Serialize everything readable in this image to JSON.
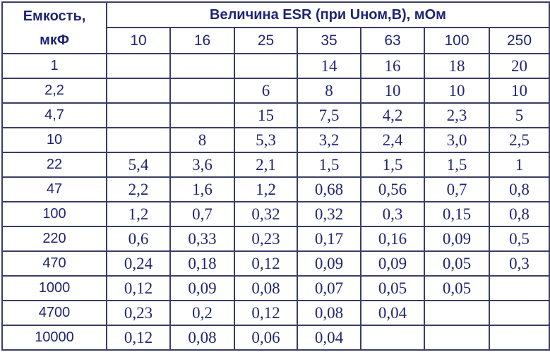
{
  "header": {
    "capacity_label": [
      "Емкость,",
      "мкФ"
    ],
    "esr_label": "Величина ESR (при Uном,В), мОм",
    "voltages": [
      10,
      16,
      25,
      35,
      63,
      100,
      250
    ]
  },
  "table": {
    "rows": [
      {
        "capacitance": "1",
        "esr": [
          null,
          null,
          null,
          "14",
          "16",
          "18",
          "20"
        ]
      },
      {
        "capacitance": "2,2",
        "esr": [
          null,
          null,
          "6",
          "8",
          "10",
          "10",
          "10"
        ]
      },
      {
        "capacitance": "4,7",
        "esr": [
          null,
          null,
          "15",
          "7,5",
          "4,2",
          "2,3",
          "5"
        ]
      },
      {
        "capacitance": "10",
        "esr": [
          null,
          "8",
          "5,3",
          "3,2",
          "2,4",
          "3,0",
          "2,5"
        ]
      },
      {
        "capacitance": "22",
        "esr": [
          "5,4",
          "3,6",
          "2,1",
          "1,5",
          "1,5",
          "1,5",
          "1"
        ]
      },
      {
        "capacitance": "47",
        "esr": [
          "2,2",
          "1,6",
          "1,2",
          "0,68",
          "0,56",
          "0,7",
          "0,8"
        ]
      },
      {
        "capacitance": "100",
        "esr": [
          "1,2",
          "0,7",
          "0,32",
          "0,32",
          "0,3",
          "0,15",
          "0,8"
        ]
      },
      {
        "capacitance": "220",
        "esr": [
          "0,6",
          "0,33",
          "0,23",
          "0,17",
          "0,16",
          "0,09",
          "0,5"
        ]
      },
      {
        "capacitance": "470",
        "esr": [
          "0,24",
          "0,18",
          "0,12",
          "0,09",
          "0,09",
          "0,05",
          "0,3"
        ]
      },
      {
        "capacitance": "1000",
        "esr": [
          "0,12",
          "0,09",
          "0,08",
          "0,07",
          "0,05",
          "0,05",
          null
        ]
      },
      {
        "capacitance": "4700",
        "esr": [
          "0,23",
          "0,2",
          "0,12",
          "0,08",
          "0,04",
          null,
          null
        ]
      },
      {
        "capacitance": "10000",
        "esr": [
          "0,12",
          "0,08",
          "0,06",
          "0,04",
          null,
          null,
          null
        ]
      }
    ]
  }
}
